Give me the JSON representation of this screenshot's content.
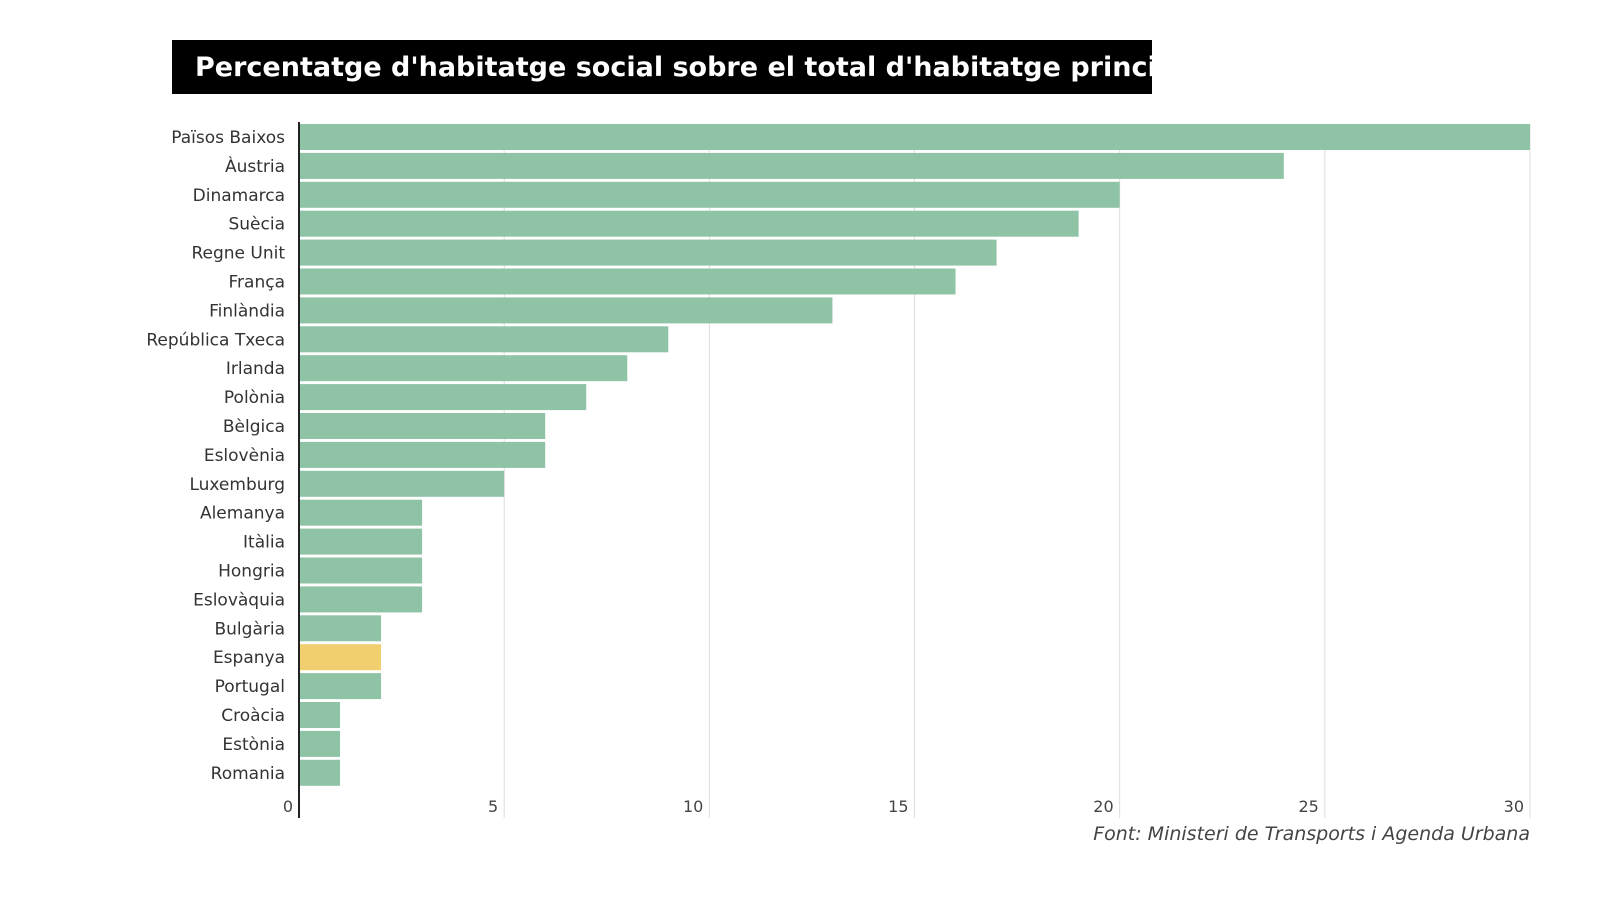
{
  "chart_data": {
    "type": "bar",
    "orientation": "horizontal",
    "title": "Percentatge d'habitatge social sobre el total d'habitatge principal",
    "categories": [
      "Països Baixos",
      "Àustria",
      "Dinamarca",
      "Suècia",
      "Regne Unit",
      "França",
      "Finlàndia",
      "República Txeca",
      "Irlanda",
      "Polònia",
      "Bèlgica",
      "Eslovènia",
      "Luxemburg",
      "Alemanya",
      "Itàlia",
      "Hongria",
      "Eslovàquia",
      "Bulgària",
      "Espanya",
      "Portugal",
      "Croàcia",
      "Estònia",
      "Romania"
    ],
    "values": [
      30,
      24,
      20,
      19,
      17,
      16,
      13,
      9,
      8,
      7,
      6,
      6,
      5,
      3,
      3,
      3,
      3,
      2,
      2,
      2,
      1,
      1,
      1
    ],
    "highlight": "Espanya",
    "xlim": [
      0,
      30
    ],
    "xticks": [
      "0",
      "5",
      "10",
      "15",
      "20",
      "25",
      "30"
    ],
    "grid": true,
    "source": "Font: Ministeri de Transports i Agenda Urbana",
    "colors": {
      "bar": "#8fc3a6",
      "highlight": "#f1cf6e",
      "grid": "#dddddd",
      "axis": "#222222"
    }
  }
}
